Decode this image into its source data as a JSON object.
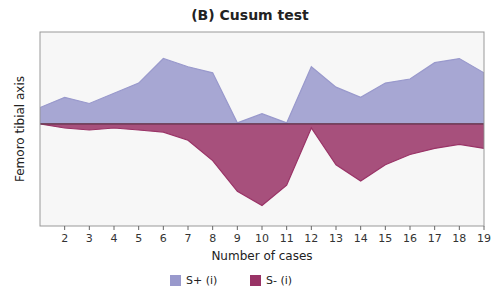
{
  "chart_data": {
    "type": "area",
    "title": "(B) Cusum test",
    "x_label": "Number of cases",
    "y_label": "Femoro tibial axis",
    "x": [
      1,
      2,
      3,
      4,
      5,
      6,
      7,
      8,
      9,
      10,
      11,
      12,
      13,
      14,
      15,
      16,
      17,
      18,
      19
    ],
    "series": [
      {
        "name": "S+ (i)",
        "color": "#9999cc",
        "values": [
          0.8,
          1.3,
          1.0,
          1.5,
          2.0,
          3.2,
          2.8,
          2.5,
          0.05,
          0.5,
          0.05,
          2.8,
          1.8,
          1.3,
          2.0,
          2.2,
          3.0,
          3.2,
          2.5
        ]
      },
      {
        "name": "S- (i)",
        "color": "#993366",
        "values": [
          0.0,
          -0.2,
          -0.3,
          -0.2,
          -0.3,
          -0.4,
          -0.8,
          -1.8,
          -3.3,
          -4.0,
          -3.0,
          -0.2,
          -2.0,
          -2.8,
          -2.0,
          -1.5,
          -1.2,
          -1.0,
          -1.2
        ]
      }
    ],
    "xlim": [
      1,
      19
    ],
    "xticks": [
      2,
      3,
      4,
      5,
      6,
      7,
      8,
      9,
      10,
      11,
      12,
      13,
      14,
      15,
      16,
      17,
      18,
      19
    ],
    "ylim": [
      -5.0,
      4.5
    ],
    "yticks": [],
    "tick_labels": "x",
    "grid": false,
    "legend": "bottom"
  }
}
